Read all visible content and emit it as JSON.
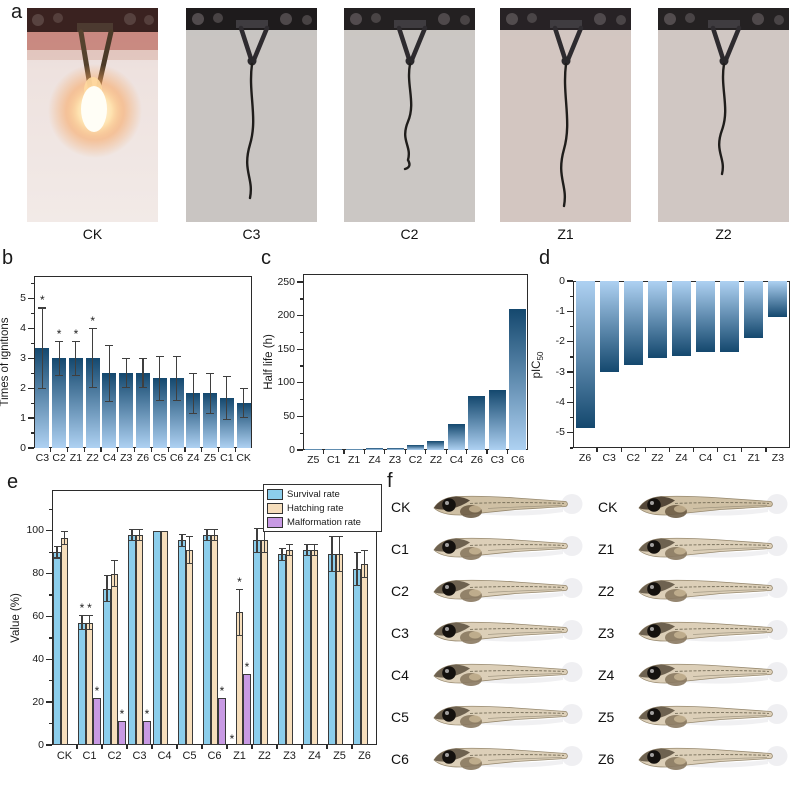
{
  "panels": {
    "a": {
      "label": "a",
      "photos": [
        {
          "name": "CK",
          "kind": "flame",
          "bg": "#ece0dc",
          "bar": "#3a2220"
        },
        {
          "name": "C3",
          "kind": "char",
          "bg": "#c9c5c2",
          "bar": "#1e1b1c",
          "char_len": 134
        },
        {
          "name": "C2",
          "kind": "char",
          "bg": "#cbc7c4",
          "bar": "#232021",
          "char_len": 96,
          "hook": true
        },
        {
          "name": "Z1",
          "kind": "char",
          "bg": "#d3c6c1",
          "bar": "#272225",
          "char_len": 142
        },
        {
          "name": "Z2",
          "kind": "char",
          "bg": "#d0c7c3",
          "bar": "#242122",
          "char_len": 110
        }
      ]
    },
    "b": {
      "label": "b"
    },
    "c": {
      "label": "c"
    },
    "d": {
      "label": "d"
    },
    "e": {
      "label": "e"
    },
    "f": {
      "label": "f",
      "left_labels": [
        "CK",
        "C1",
        "C2",
        "C3",
        "C4",
        "C5",
        "C6"
      ],
      "right_labels": [
        "CK",
        "Z1",
        "Z2",
        "Z3",
        "Z4",
        "Z5",
        "Z6"
      ]
    }
  },
  "colors": {
    "bar_gradient_dark": "#14486e",
    "bar_gradient_light": "#aed1f2",
    "survival": "#8cceec",
    "hatching": "#f6debc",
    "malformation": "#c89ae4",
    "error_bar": "#3f3f3f",
    "frame": "#2b2b2b"
  },
  "chart_data": [
    {
      "type": "bar",
      "panel": "b",
      "ylabel": "Times of ignitions",
      "categories": [
        "C3",
        "C2",
        "Z1",
        "Z2",
        "C4",
        "Z3",
        "Z6",
        "C5",
        "C6",
        "Z4",
        "Z5",
        "C1",
        "CK"
      ],
      "values": [
        3.33,
        3.0,
        3.0,
        3.0,
        2.5,
        2.5,
        2.5,
        2.33,
        2.33,
        1.83,
        1.83,
        1.67,
        1.5
      ],
      "errors": [
        1.37,
        0.58,
        0.58,
        1.0,
        0.96,
        0.5,
        0.5,
        0.75,
        0.75,
        0.68,
        0.68,
        0.74,
        0.5
      ],
      "stars": [
        true,
        true,
        true,
        true,
        false,
        false,
        false,
        false,
        false,
        false,
        false,
        false,
        false
      ],
      "ylim": [
        0,
        5.75
      ],
      "yticks": [
        0,
        1,
        2,
        3,
        4,
        5
      ],
      "yminor": 0.5,
      "grid": false
    },
    {
      "type": "bar",
      "panel": "c",
      "ylabel": "Half life (h)",
      "categories": [
        "Z5",
        "C1",
        "Z1",
        "Z4",
        "Z3",
        "C2",
        "Z2",
        "C4",
        "Z6",
        "C3",
        "C6"
      ],
      "values": [
        1,
        2,
        2,
        3.5,
        3.5,
        7,
        14,
        38,
        80,
        89,
        210
      ],
      "errors": [],
      "stars": [],
      "ylim": [
        0,
        262
      ],
      "yticks": [
        0,
        50,
        100,
        150,
        200,
        250
      ],
      "yminor": 25,
      "grid": false
    },
    {
      "type": "bar",
      "panel": "d",
      "direction": "down",
      "ylabel": "pIC",
      "ylabel_sub": "50",
      "categories": [
        "Z6",
        "C3",
        "C2",
        "Z2",
        "Z4",
        "C4",
        "C1",
        "Z1",
        "Z3"
      ],
      "values": [
        -4.85,
        -3.0,
        -2.75,
        -2.52,
        -2.48,
        -2.35,
        -2.35,
        -1.87,
        -1.2
      ],
      "errors": [],
      "stars": [],
      "ylim": [
        0,
        -5.5
      ],
      "yticks": [
        0,
        -1,
        -2,
        -3,
        -4,
        -5
      ],
      "yminor": 0.5,
      "grid": false
    },
    {
      "type": "grouped-bar",
      "panel": "e",
      "ylabel": "Value (%)",
      "categories": [
        "CK",
        "C1",
        "C2",
        "C3",
        "C4",
        "C5",
        "C6",
        "Z1",
        "Z2",
        "Z3",
        "Z4",
        "Z5",
        "Z6"
      ],
      "series": [
        {
          "name": "Survival rate",
          "color": "#8cceec",
          "values": [
            90,
            57,
            73,
            98,
            100,
            95.5,
            98,
            0,
            95.5,
            89,
            91,
            89,
            82
          ],
          "errors": [
            3,
            3.5,
            6.5,
            3,
            0,
            3,
            3,
            0,
            6,
            3,
            3,
            8.5,
            8
          ],
          "stars": [
            false,
            true,
            false,
            false,
            false,
            false,
            false,
            true,
            false,
            false,
            false,
            false,
            false
          ]
        },
        {
          "name": "Hatching rate",
          "color": "#f6debc",
          "values": [
            96.5,
            57,
            80,
            98,
            100,
            91,
            98,
            62,
            95.5,
            91,
            91,
            89,
            84.5
          ],
          "errors": [
            3.2,
            3.5,
            6.5,
            3,
            0,
            6.5,
            3,
            11,
            6,
            3,
            3,
            8.5,
            6.5
          ],
          "stars": [
            false,
            true,
            false,
            false,
            false,
            false,
            false,
            true,
            false,
            false,
            false,
            false,
            false
          ]
        },
        {
          "name": "Malformation rate",
          "color": "#c89ae4",
          "values": [
            0,
            22,
            11,
            11,
            0,
            0,
            22,
            33,
            0,
            0,
            0,
            0,
            0
          ],
          "errors": [
            0,
            0,
            0,
            0,
            0,
            0,
            0,
            0,
            0,
            0,
            0,
            0,
            0
          ],
          "stars": [
            false,
            true,
            true,
            true,
            false,
            false,
            true,
            true,
            false,
            false,
            false,
            false,
            false
          ]
        }
      ],
      "ylim": [
        0,
        119
      ],
      "yticks": [
        0,
        20,
        40,
        60,
        80,
        100
      ],
      "yminor": 10,
      "legend_position": "top-right",
      "grid": false
    }
  ]
}
